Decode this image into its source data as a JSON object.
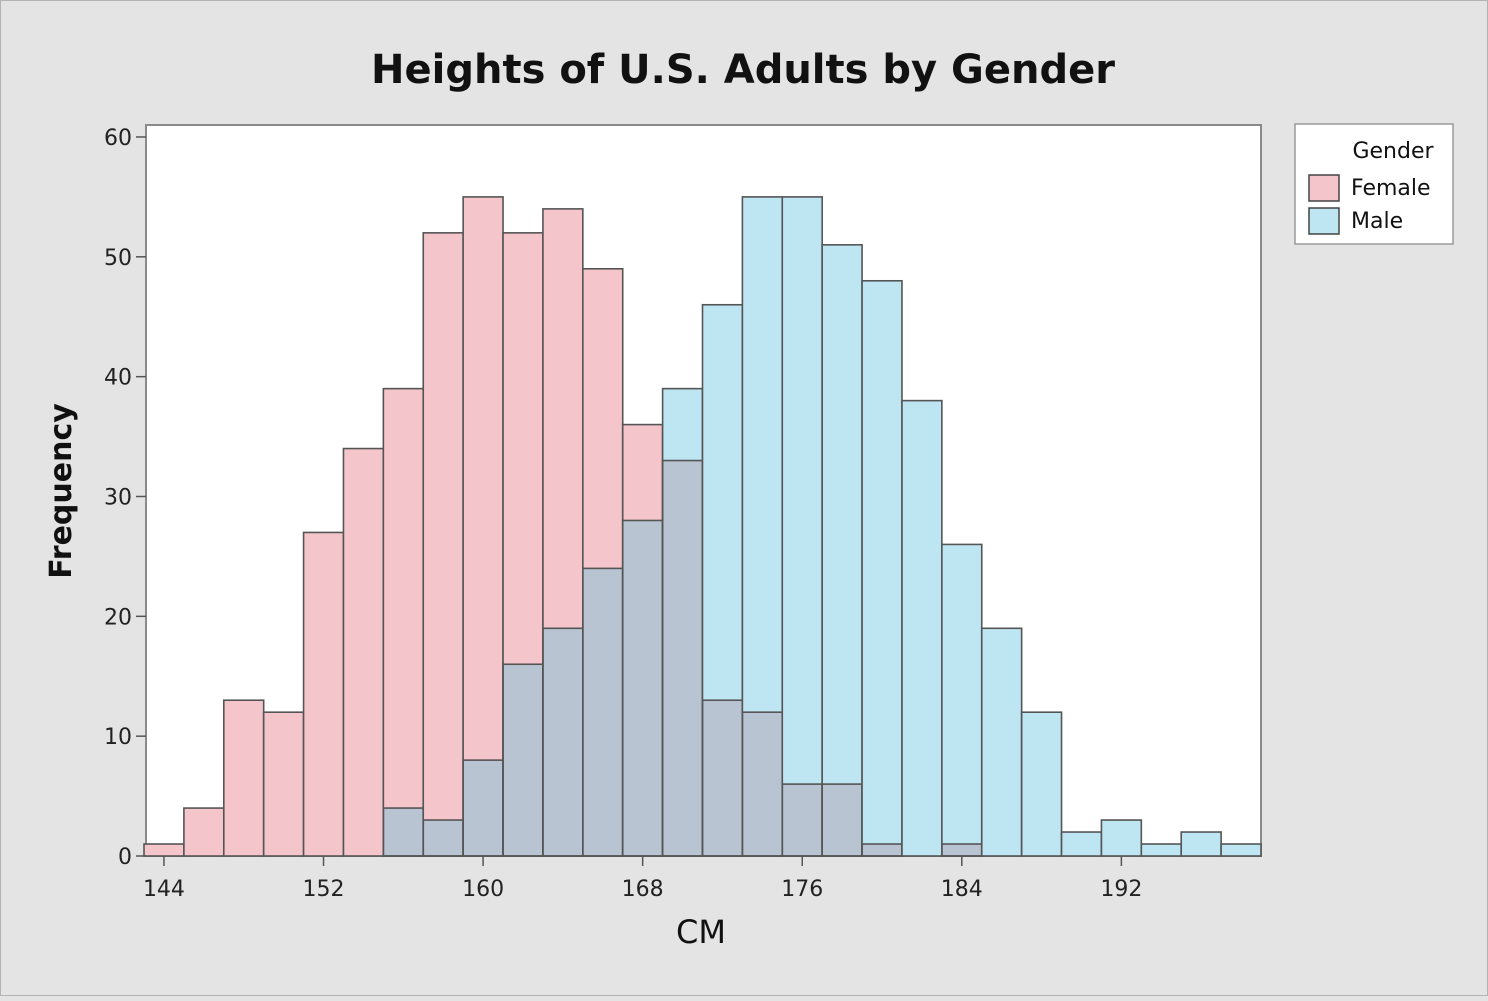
{
  "chart_data": {
    "type": "bar",
    "title": "Heights of U.S. Adults by Gender",
    "xlabel": "CM",
    "ylabel": "Frequency",
    "xlim": [
      143.1,
      199
    ],
    "ylim": [
      0,
      61
    ],
    "xticks": [
      144,
      152,
      160,
      168,
      176,
      184,
      192
    ],
    "yticks": [
      0,
      10,
      20,
      30,
      40,
      50,
      60
    ],
    "bin_width": 2,
    "bin_starts": [
      143,
      145,
      147,
      149,
      151,
      153,
      155,
      157,
      159,
      161,
      163,
      165,
      167,
      169,
      171,
      173,
      175,
      177,
      179,
      181,
      183,
      185,
      187,
      189,
      191,
      193,
      195,
      197
    ],
    "series": [
      {
        "name": "Female",
        "color": "#f4c6cb",
        "values": [
          1,
          4,
          13,
          12,
          27,
          34,
          39,
          52,
          55,
          52,
          54,
          49,
          36,
          33,
          13,
          12,
          6,
          6,
          1,
          0,
          1,
          0,
          0,
          0,
          0,
          0,
          0,
          0
        ]
      },
      {
        "name": "Male",
        "color": "#bde5f2",
        "values": [
          0,
          0,
          0,
          0,
          0,
          0,
          4,
          3,
          8,
          16,
          19,
          24,
          28,
          39,
          46,
          55,
          55,
          51,
          48,
          38,
          26,
          19,
          12,
          2,
          3,
          1,
          2,
          1
        ]
      }
    ],
    "overlap_color": "#b8c4d1",
    "grid": false,
    "legend": {
      "title": "Gender",
      "position": "right"
    }
  }
}
